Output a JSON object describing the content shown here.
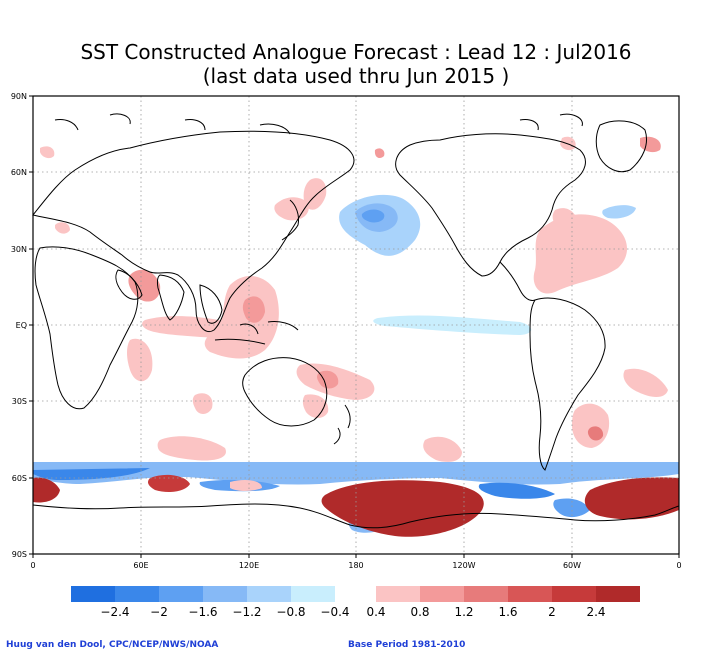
{
  "title_line1": "SST Constructed Analogue Forecast : Lead 12 : Jul2016",
  "title_line2": "(last data used thru Jun 2015 )",
  "lat_labels": [
    "90N",
    "60N",
    "30N",
    "EQ",
    "30S",
    "60S",
    "90S"
  ],
  "lon_labels": [
    "0",
    "60E",
    "120E",
    "180",
    "120W",
    "60W",
    "0"
  ],
  "colorbar": {
    "neg_colors": [
      "#1f6fe0",
      "#3a87ea",
      "#5ea0f2",
      "#86b9f6",
      "#a9d3fb",
      "#c9eefd"
    ],
    "pos_colors": [
      "#fbc4c4",
      "#f39a9a",
      "#e77b7b",
      "#d85656",
      "#c63a3a",
      "#b02a2a"
    ],
    "neg_labels": [
      "−2.4",
      "−2",
      "−1.6",
      "−1.2",
      "−0.8",
      "−0.4"
    ],
    "pos_labels": [
      "0.4",
      "0.8",
      "1.2",
      "1.6",
      "2",
      "2.4"
    ]
  },
  "credit_left": "Huug van den Dool, CPC/NCEP/NWS/NOAA",
  "credit_right": "Base Period 1981-2010"
}
